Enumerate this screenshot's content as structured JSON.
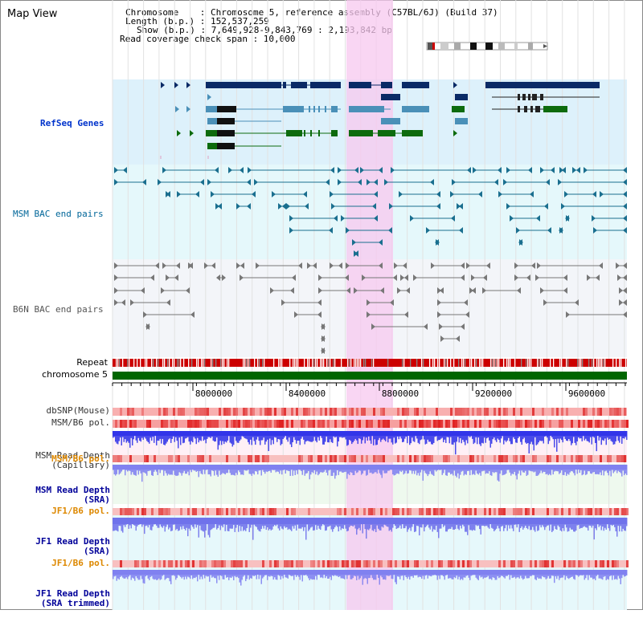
{
  "title": "Map View",
  "info": {
    "chromosome": "Chromosome    : Chromosome 5, reference assembly (C57BL/6J) (Build 37)",
    "length": "Length (b.p.) : 152,537,259",
    "show": "Show (b.p.) : 7,649,928-9,843,769 : 2,193,842 bp",
    "coverage": "Read coverage check span : 10,000"
  },
  "tracks": {
    "refseq": "RefSeq Genes",
    "msm_bac": "MSM BAC end pairs",
    "b6n_bac": "B6N BAC end pairs",
    "repeat": "Repeat",
    "chromosome": "chromosome 5",
    "dbsnp": "dbSNP(Mouse)",
    "msm_b6_pol": "MSM/B6 pol.",
    "msm_depth_cap_1": "MSM Read Depth",
    "msm_depth_cap_2": "(Capillary)",
    "msm_b6_pol_2": "MSM/B6 pol.",
    "msm_depth_sra_1": "MSM Read Depth",
    "msm_depth_sra_2": "(SRA)",
    "jf1_b6_pol": "JF1/B6 pol.",
    "jf1_depth_sra_1": "JF1 Read Depth",
    "jf1_depth_sra_2": "(SRA)",
    "jf1_b6_pol_2": "JF1/B6 pol.",
    "jf1_depth_trim_1": "JF1 Read Depth",
    "jf1_depth_trim_2": "(SRA trimmed)"
  },
  "axis": {
    "ticks": [
      "8000000",
      "8400000",
      "8800000",
      "9200000",
      "9600000"
    ]
  },
  "colors": {
    "refseq_label": "#0033cc",
    "msm_label": "#006699",
    "b6n_label": "#555555",
    "orange_label": "#dd8800",
    "navy_label": "#000099",
    "gene_dark": "#0a2a66",
    "gene_mid": "#4a90b8",
    "gene_green": "#006600",
    "highlight": "#f7c8ef"
  }
}
